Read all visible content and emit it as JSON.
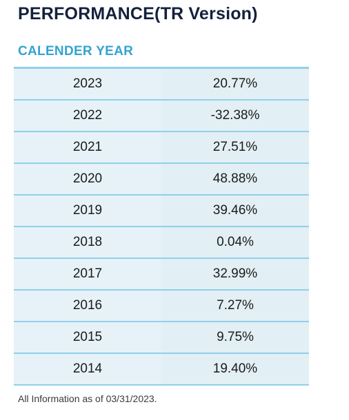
{
  "header": {
    "title": "PERFORMANCE(TR Version)",
    "subtitle": "CALENDER YEAR"
  },
  "table": {
    "rows": [
      {
        "year": "2023",
        "return": "20.77%"
      },
      {
        "year": "2022",
        "return": "-32.38%"
      },
      {
        "year": "2021",
        "return": "27.51%"
      },
      {
        "year": "2020",
        "return": "48.88%"
      },
      {
        "year": "2019",
        "return": "39.46%"
      },
      {
        "year": "2018",
        "return": "0.04%"
      },
      {
        "year": "2017",
        "return": "32.99%"
      },
      {
        "year": "2016",
        "return": "7.27%"
      },
      {
        "year": "2015",
        "return": "9.75%"
      },
      {
        "year": "2014",
        "return": "19.40%"
      }
    ]
  },
  "footnote": "All Information as of 03/31/2023.",
  "colors": {
    "title": "#14213d",
    "subtitle": "#33a4cf",
    "row_border": "#8fd0ea",
    "row_background": "#e4f0f6"
  }
}
